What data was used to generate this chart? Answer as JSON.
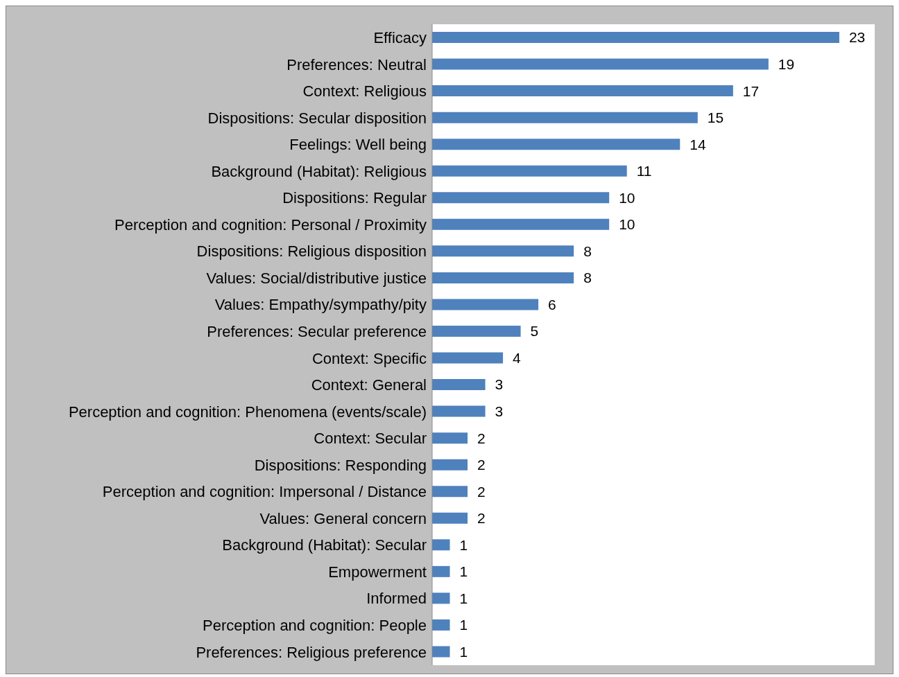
{
  "chart_data": {
    "type": "bar",
    "orientation": "horizontal",
    "data_labels": true,
    "color": "#4f81bd",
    "categories": [
      "Efficacy",
      "Preferences: Neutral",
      "Context: Religious",
      "Dispositions: Secular disposition",
      "Feelings: Well being",
      "Background (Habitat): Religious",
      "Dispositions: Regular",
      "Perception and cognition: Personal / Proximity",
      "Dispositions: Religious disposition",
      "Values: Social/distributive justice",
      "Values: Empathy/sympathy/pity",
      "Preferences: Secular preference",
      "Context: Specific",
      "Context: General",
      "Perception and cognition: Phenomena (events/scale)",
      "Context: Secular",
      "Dispositions: Responding",
      "Perception and cognition: Impersonal / Distance",
      "Values: General concern",
      "Background (Habitat): Secular",
      "Empowerment",
      "Informed",
      "Perception and cognition: People",
      "Preferences: Religious preference"
    ],
    "values": [
      23,
      19,
      17,
      15,
      14,
      11,
      10,
      10,
      8,
      8,
      6,
      5,
      4,
      3,
      3,
      2,
      2,
      2,
      2,
      1,
      1,
      1,
      1,
      1
    ]
  }
}
